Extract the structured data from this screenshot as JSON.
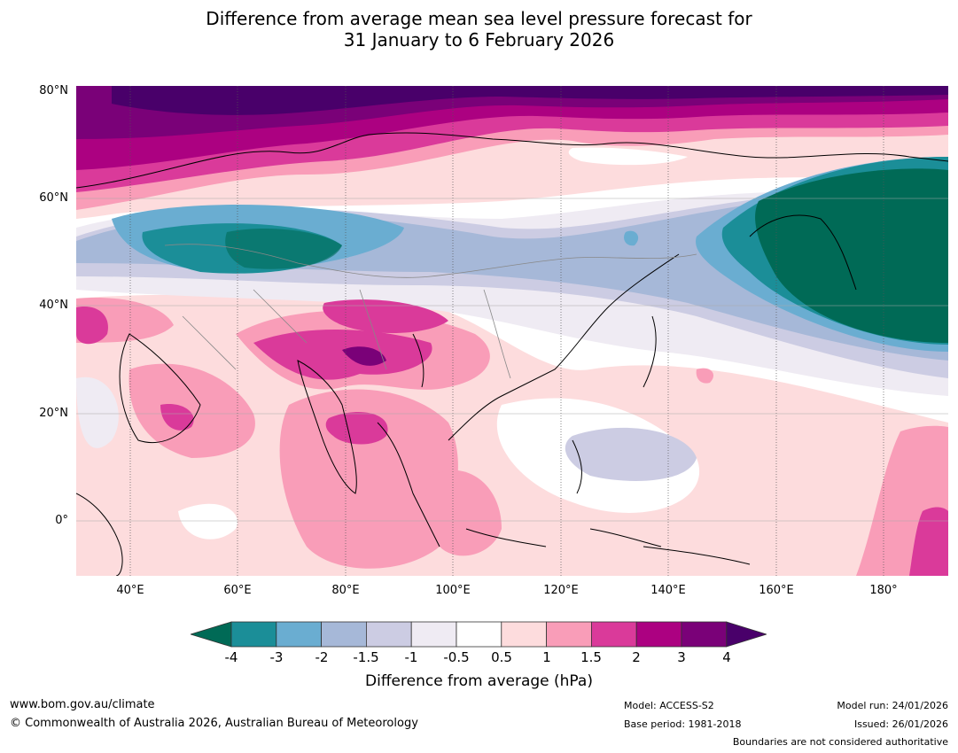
{
  "title": {
    "line1": "Difference from average mean sea level pressure forecast for",
    "line2": "31 January to 6 February 2026"
  },
  "map": {
    "lat_labels": [
      "80°N",
      "60°N",
      "40°N",
      "20°N",
      "0°"
    ],
    "lon_labels": [
      "40°E",
      "60°E",
      "80°E",
      "100°E",
      "120°E",
      "140°E",
      "160°E",
      "180°"
    ],
    "extent": {
      "lon": [
        30,
        192
      ],
      "lat": [
        -10,
        81
      ]
    }
  },
  "colorbar": {
    "ticks": [
      "-4",
      "-3",
      "-2",
      "-1.5",
      "-1",
      "-0.5",
      "0.5",
      "1",
      "1.5",
      "2",
      "3",
      "4"
    ],
    "colors": [
      "#006a56",
      "#1b8e98",
      "#6aadd1",
      "#a6b8d8",
      "#cccce3",
      "#efebf3",
      "#ffffff",
      "#fddcdd",
      "#f99db8",
      "#da3a9a",
      "#ac0181",
      "#7a0178",
      "#49006a"
    ],
    "label": "Difference from average (hPa)"
  },
  "footer": {
    "url": "www.bom.gov.au/climate",
    "copyright": "© Commonwealth of Australia 2026, Australian Bureau of Meteorology",
    "model": "Model: ACCESS-S2",
    "base_period": "Base period: 1981-2018",
    "model_run": "Model run: 24/01/2026",
    "issued": "Issued: 26/01/2026",
    "disclaimer": "Boundaries are not considered authoritative"
  }
}
